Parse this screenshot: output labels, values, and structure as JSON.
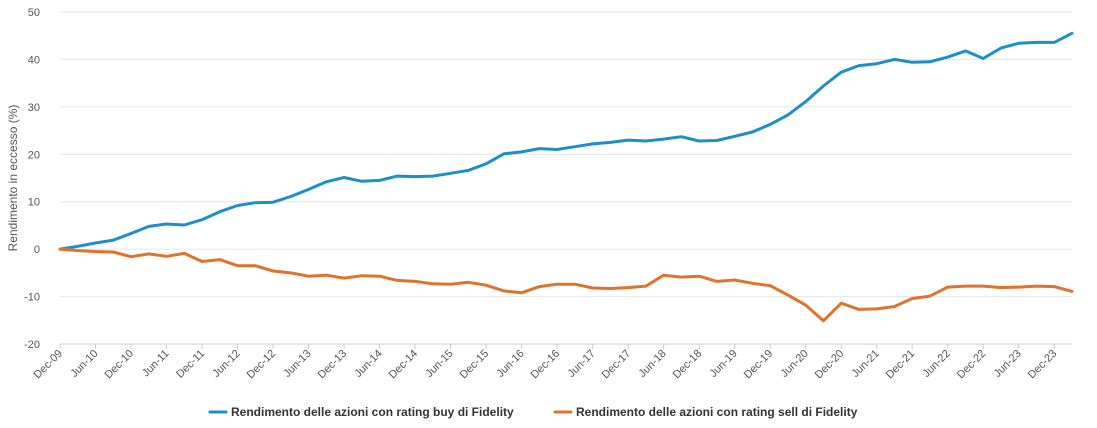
{
  "chart_data": {
    "type": "line",
    "title": "",
    "xlabel": "",
    "ylabel": "Rendimento in eccesso (%)",
    "ylim": [
      -20,
      50
    ],
    "yticks": [
      -20,
      -10,
      0,
      10,
      20,
      30,
      40,
      50
    ],
    "grid": true,
    "legend_position": "bottom",
    "x_tick_labels": [
      "Dec-09",
      "Jun-10",
      "Dec-10",
      "Jun-11",
      "Dec-11",
      "Jun-12",
      "Dec-12",
      "Jun-13",
      "Dec-13",
      "Jun-14",
      "Dec-14",
      "Jun-15",
      "Dec-15",
      "Jun-16",
      "Dec-16",
      "Jun-17",
      "Dec-17",
      "Jun-18",
      "Dec-18",
      "Jun-19",
      "Dec-19",
      "Jun-20",
      "Dec-20",
      "Jun-21",
      "Dec-21",
      "Jun-22",
      "Dec-22",
      "Jun-23",
      "Dec-23"
    ],
    "series": [
      {
        "name": "Rendimento delle azioni con rating buy di Fidelity",
        "color": "#1a8fc9",
        "values": [
          0,
          0.6,
          1.3,
          1.9,
          3.3,
          4.8,
          5.3,
          5.1,
          6.2,
          7.9,
          9.2,
          9.8,
          9.9,
          11.1,
          12.6,
          14.2,
          15.1,
          14.3,
          14.5,
          15.4,
          15.3,
          15.4,
          16.0,
          16.6,
          18.0,
          20.1,
          20.5,
          21.2,
          21.0,
          21.6,
          22.2,
          22.5,
          23.0,
          22.8,
          23.2,
          23.7,
          22.8,
          22.9,
          23.8,
          24.7,
          26.3,
          28.3,
          31.1,
          34.4,
          37.3,
          38.7,
          39.1,
          40.0,
          39.4,
          39.5,
          40.5,
          41.8,
          40.2,
          42.4,
          43.4,
          43.6,
          43.6,
          45.5
        ]
      },
      {
        "name": "Rendimento delle azioni con rating sell di Fidelity",
        "color": "#e2712b",
        "values": [
          0,
          -0.3,
          -0.5,
          -0.6,
          -1.6,
          -1.0,
          -1.5,
          -0.9,
          -2.6,
          -2.2,
          -3.5,
          -3.5,
          -4.6,
          -5.0,
          -5.7,
          -5.5,
          -6.1,
          -5.6,
          -5.7,
          -6.6,
          -6.8,
          -7.3,
          -7.4,
          -7.0,
          -7.6,
          -8.8,
          -9.2,
          -7.9,
          -7.4,
          -7.4,
          -8.2,
          -8.3,
          -8.1,
          -7.8,
          -5.5,
          -5.9,
          -5.7,
          -6.8,
          -6.5,
          -7.2,
          -7.7,
          -9.7,
          -11.8,
          -15.1,
          -11.4,
          -12.7,
          -12.6,
          -12.1,
          -10.4,
          -9.9,
          -8.0,
          -7.8,
          -7.8,
          -8.1,
          -8.0,
          -7.8,
          -7.9,
          -8.9
        ]
      }
    ]
  }
}
